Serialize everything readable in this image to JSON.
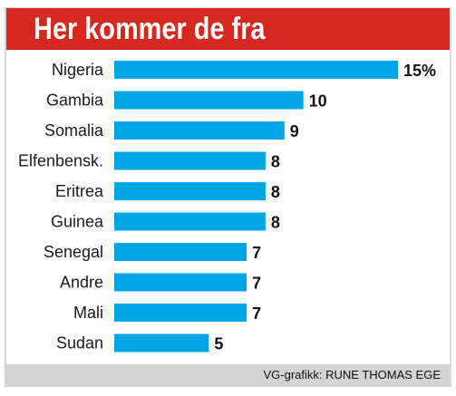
{
  "header": {
    "title": "Her kommer de fra"
  },
  "chart_data": {
    "type": "bar",
    "orientation": "horizontal",
    "title": "Her kommer de fra",
    "categories": [
      "Nigeria",
      "Gambia",
      "Somalia",
      "Elfenbensk.",
      "Eritrea",
      "Guinea",
      "Senegal",
      "Andre",
      "Mali",
      "Sudan"
    ],
    "values": [
      15,
      10,
      9,
      8,
      8,
      8,
      7,
      7,
      7,
      5
    ],
    "value_labels": [
      "15%",
      "10",
      "9",
      "8",
      "8",
      "8",
      "7",
      "7",
      "7",
      "5"
    ],
    "unit": "%",
    "xlim": [
      0,
      15
    ],
    "grid": false,
    "legend": "none",
    "bar_color": "#00a6e4"
  },
  "footer": {
    "credit": "VG-grafikk: RUNE THOMAS EGE"
  },
  "colors": {
    "title_bar": "#d6281f",
    "bar": "#00a6e4",
    "footer_bar": "#d4d4d4"
  }
}
